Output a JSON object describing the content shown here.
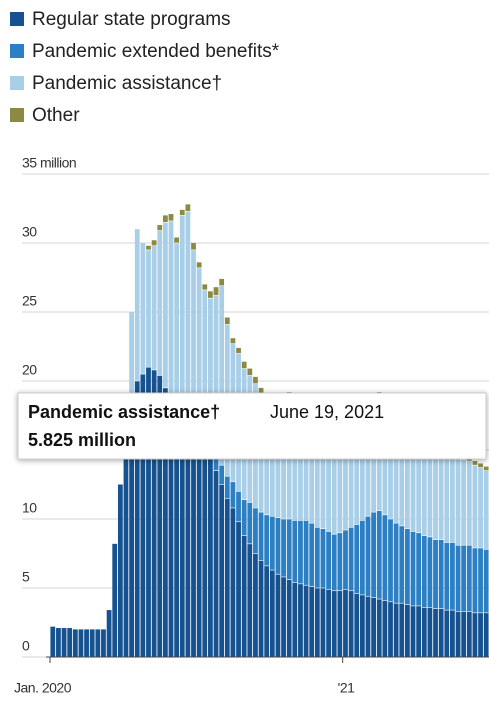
{
  "chart_data": {
    "type": "stacked_bar",
    "categories": [
      "Jan. 2020",
      null,
      null,
      null,
      null,
      null,
      null,
      null,
      null,
      null,
      null,
      null,
      null,
      null,
      null,
      null,
      null,
      null,
      null,
      null,
      null,
      null,
      null,
      null,
      null,
      null,
      null,
      null,
      null,
      null,
      null,
      null,
      null,
      null,
      null,
      null,
      null,
      null,
      null,
      null,
      null,
      null,
      null,
      null,
      null,
      null,
      null,
      null,
      null,
      null,
      null,
      null,
      "'21",
      null,
      null,
      null,
      null,
      null,
      null,
      null,
      null,
      null,
      null,
      null,
      null,
      null,
      null,
      null,
      null,
      null,
      null,
      null,
      null,
      null,
      null,
      null,
      null,
      null
    ],
    "series": [
      {
        "name": "Regular state programs",
        "color": "#15528f",
        "values": [
          2.2,
          2.1,
          2.1,
          2.1,
          2.0,
          2.0,
          2.0,
          2.0,
          2.0,
          2.0,
          3.4,
          8.2,
          12.5,
          16.5,
          18.5,
          20.0,
          20.5,
          21.0,
          20.8,
          20.4,
          19.5,
          18.8,
          18.0,
          17.5,
          17.0,
          16.5,
          16.0,
          15.2,
          14.5,
          13.5,
          12.5,
          11.5,
          10.8,
          9.8,
          8.8,
          8.2,
          7.5,
          7.0,
          6.6,
          6.3,
          6.0,
          5.8,
          5.6,
          5.4,
          5.3,
          5.2,
          5.1,
          5.0,
          5.0,
          4.9,
          4.8,
          4.8,
          4.9,
          4.8,
          4.6,
          4.5,
          4.4,
          4.3,
          4.2,
          4.1,
          4.0,
          3.9,
          3.9,
          3.8,
          3.7,
          3.7,
          3.6,
          3.6,
          3.5,
          3.5,
          3.4,
          3.4,
          3.3,
          3.3,
          3.3,
          3.2,
          3.2,
          3.2
        ]
      },
      {
        "name": "Pandemic extended benefits*",
        "color": "#2b7fc2",
        "values": [
          0,
          0,
          0,
          0,
          0,
          0,
          0,
          0,
          0,
          0,
          0,
          0,
          0,
          0,
          0,
          0,
          0,
          0,
          0,
          0,
          0,
          0,
          0,
          0,
          0.3,
          0.5,
          0.7,
          0.9,
          1.0,
          1.2,
          1.4,
          1.6,
          1.9,
          2.2,
          2.6,
          3.0,
          3.3,
          3.5,
          3.7,
          3.9,
          4.1,
          4.2,
          4.4,
          4.5,
          4.6,
          4.7,
          4.6,
          4.4,
          4.3,
          4.2,
          4.1,
          4.2,
          4.3,
          4.6,
          5.0,
          5.4,
          5.8,
          6.2,
          6.4,
          6.2,
          6.0,
          5.8,
          5.6,
          5.5,
          5.4,
          5.3,
          5.2,
          5.1,
          5.0,
          5.0,
          4.9,
          4.9,
          4.8,
          4.8,
          4.8,
          4.7,
          4.7,
          4.6
        ]
      },
      {
        "name": "Pandemic assistance†",
        "color": "#a9cfe8",
        "values": [
          0,
          0,
          0,
          0,
          0,
          0,
          0,
          0,
          0,
          0,
          0,
          0,
          0,
          1.0,
          6.5,
          11.0,
          9.5,
          8.5,
          9.0,
          10.5,
          12.0,
          12.8,
          12.0,
          14.5,
          15.0,
          12.5,
          11.5,
          10.5,
          10.5,
          11.5,
          13.0,
          11.0,
          10.0,
          10.0,
          9.5,
          9.2,
          9.0,
          8.6,
          8.3,
          8.2,
          8.0,
          8.5,
          8.8,
          8.5,
          8.3,
          8.6,
          9.0,
          9.0,
          8.8,
          8.6,
          9.0,
          8.8,
          9.0,
          8.6,
          8.2,
          7.8,
          8.0,
          8.2,
          8.2,
          8.0,
          7.8,
          7.6,
          7.4,
          7.2,
          7.1,
          7.0,
          6.9,
          6.8,
          6.7,
          6.6,
          6.5,
          6.4,
          6.3,
          6.2,
          6.1,
          6.0,
          5.825,
          5.7
        ]
      },
      {
        "name": "Other",
        "color": "#8c8a42",
        "values": [
          0,
          0,
          0,
          0,
          0,
          0,
          0,
          0,
          0,
          0,
          0,
          0,
          0,
          0,
          0,
          0,
          0,
          0.3,
          0.4,
          0.4,
          0.5,
          0.5,
          0.4,
          0.4,
          0.5,
          0.5,
          0.4,
          0.4,
          0.5,
          0.6,
          0.5,
          0.5,
          0.4,
          0.4,
          0.5,
          0.5,
          0.5,
          0.4,
          0.4,
          0.5,
          0.6,
          0.5,
          0.4,
          0.4,
          0.5,
          0.5,
          0.4,
          0.4,
          0.5,
          0.5,
          0.4,
          0.4,
          0.5,
          0.5,
          0.4,
          0.4,
          0.4,
          0.4,
          0.4,
          0.4,
          0.3,
          0.3,
          0.3,
          0.3,
          0.3,
          0.3,
          0.3,
          0.3,
          0.3,
          0.3,
          0.3,
          0.3,
          0.3,
          0.3,
          0.3,
          0.3,
          0.3,
          0.3
        ]
      }
    ],
    "ylim": [
      0,
      35
    ],
    "yticks": [
      0,
      5,
      10,
      15,
      20,
      25,
      30,
      {
        "value": 35,
        "label": "35 million"
      }
    ],
    "grid": true,
    "tooltip": {
      "series": "Pandemic assistance†",
      "date": "June 19, 2021",
      "value_label": "5.825 million"
    }
  }
}
